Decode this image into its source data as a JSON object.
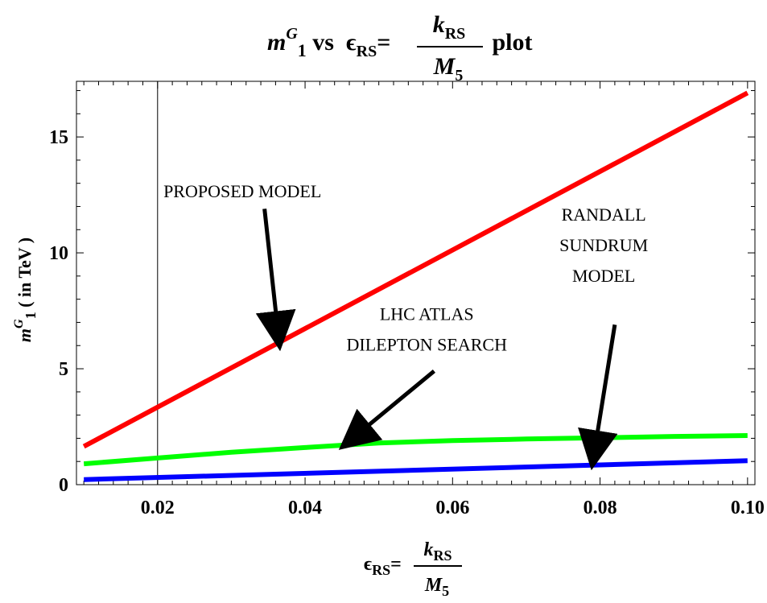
{
  "chart_data": {
    "type": "line",
    "title": {
      "m": "m",
      "sup": "G",
      "sub": "1",
      "vs": " vs  ",
      "eps": "ϵ",
      "eps_sub": "RS",
      "eq": "=",
      "num": "k",
      "num_sub": "RS",
      "den": "M",
      "den_sub": "5",
      "suffix": " plot"
    },
    "xlabel": {
      "eps": "ϵ",
      "eps_sub": "RS",
      "eq": "=",
      "num": "k",
      "num_sub": "RS",
      "den": "M",
      "den_sub": "5"
    },
    "ylabel": {
      "m": "m",
      "sup": "G",
      "sub": "1",
      "rest": " ( in TeV )"
    },
    "xlim": [
      0.009,
      0.101
    ],
    "ylim": [
      0,
      17.4
    ],
    "x_ticks": [
      0.02,
      0.04,
      0.06,
      0.08,
      0.1
    ],
    "x_tick_labels": [
      "0.02",
      "0.04",
      "0.06",
      "0.08",
      "0.10"
    ],
    "y_ticks": [
      0,
      5,
      10,
      15
    ],
    "y_tick_labels": [
      "0",
      "5",
      "10",
      "15"
    ],
    "grid": false,
    "vertical_line_x": 0.02,
    "series": [
      {
        "id": "proposed",
        "color": "#ff0000",
        "x": [
          0.01,
          0.1
        ],
        "y": [
          1.65,
          16.9
        ]
      },
      {
        "id": "lhc",
        "color": "#00ff00",
        "x": [
          0.01,
          0.02,
          0.03,
          0.04,
          0.05,
          0.06,
          0.07,
          0.08,
          0.09,
          0.1
        ],
        "y": [
          0.9,
          1.15,
          1.4,
          1.6,
          1.8,
          1.9,
          1.97,
          2.02,
          2.08,
          2.12
        ]
      },
      {
        "id": "rs",
        "color": "#0000ff",
        "x": [
          0.01,
          0.1
        ],
        "y": [
          0.22,
          1.03
        ]
      }
    ],
    "annotations": [
      {
        "id": "proposed",
        "lines": [
          "PROPOSED  MODEL"
        ],
        "text_at": [
          0.0315,
          12.4
        ],
        "arrow_from": [
          0.0345,
          11.9
        ],
        "arrow_to": [
          0.0365,
          6.1
        ]
      },
      {
        "id": "lhc",
        "lines": [
          "LHC  ATLAS",
          "DILEPTON  SEARCH"
        ],
        "text_at": [
          0.0565,
          7.1
        ],
        "arrow_from": [
          0.0575,
          4.9
        ],
        "arrow_to": [
          0.0454,
          1.72
        ]
      },
      {
        "id": "rs",
        "lines": [
          "RANDALL",
          "SUNDRUM",
          " MODEL"
        ],
        "text_at": [
          0.0805,
          11.4
        ],
        "arrow_from": [
          0.082,
          6.9
        ],
        "arrow_to": [
          0.079,
          0.96
        ]
      }
    ]
  }
}
